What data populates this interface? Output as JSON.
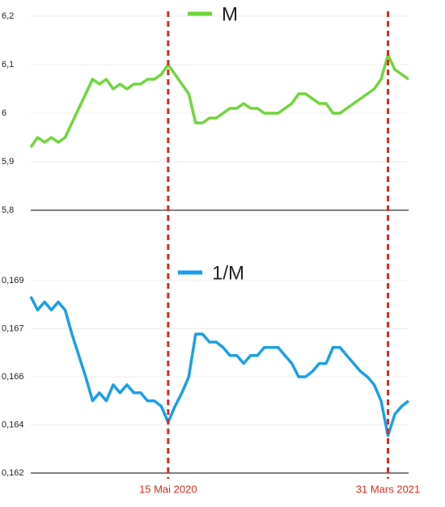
{
  "chart_data": {
    "type": "line",
    "categories": [
      null,
      null,
      null,
      null,
      null,
      null,
      null,
      null,
      null,
      null,
      null,
      null,
      null,
      null,
      null,
      null,
      null,
      null,
      null,
      null,
      "15 Mai 2020",
      null,
      null,
      null,
      null,
      null,
      null,
      null,
      null,
      null,
      null,
      null,
      null,
      null,
      null,
      null,
      null,
      null,
      null,
      null,
      null,
      null,
      null,
      null,
      null,
      null,
      null,
      null,
      null,
      null,
      null,
      null,
      "31 Mars 2021",
      null,
      null,
      null
    ],
    "reference_line_color": "#e0281e",
    "grid": true,
    "panels": [
      {
        "series": [
          {
            "name": "M",
            "color": "#6fd63a",
            "values": [
              5.93,
              5.95,
              5.94,
              5.95,
              5.94,
              5.95,
              5.98,
              6.01,
              6.04,
              6.07,
              6.06,
              6.07,
              6.05,
              6.06,
              6.05,
              6.06,
              6.06,
              6.07,
              6.07,
              6.08,
              6.1,
              6.08,
              6.06,
              6.04,
              5.98,
              5.98,
              5.99,
              5.99,
              6.0,
              6.01,
              6.01,
              6.02,
              6.01,
              6.01,
              6.0,
              6.0,
              6.0,
              6.01,
              6.02,
              6.04,
              6.04,
              6.03,
              6.02,
              6.02,
              6.0,
              6.0,
              6.01,
              6.02,
              6.03,
              6.04,
              6.05,
              6.07,
              6.12,
              6.09,
              6.08,
              6.07
            ]
          }
        ],
        "ylim": [
          5.8,
          6.2
        ],
        "yticks": [
          {
            "value": 5.8,
            "label": "5,8"
          },
          {
            "value": 5.9,
            "label": "5,9"
          },
          6,
          {
            "value": 6.1,
            "label": "6,1"
          },
          {
            "value": 6.2,
            "label": "6,2"
          }
        ]
      },
      {
        "series": [
          {
            "name": "1/M",
            "color": "#1a9fe8",
            "values": [
              0.1686,
              0.1681,
              0.1684,
              0.1681,
              0.1684,
              0.1681,
              0.1672,
              0.1664,
              0.1656,
              0.1647,
              0.165,
              0.1647,
              0.1653,
              0.165,
              0.1653,
              0.165,
              0.165,
              0.1647,
              0.1647,
              0.1645,
              0.1639,
              0.1645,
              0.165,
              0.1656,
              0.1672,
              0.1672,
              0.1669,
              0.1669,
              0.1667,
              0.1664,
              0.1664,
              0.1661,
              0.1664,
              0.1664,
              0.1667,
              0.1667,
              0.1667,
              0.1664,
              0.1661,
              0.1656,
              0.1656,
              0.1658,
              0.1661,
              0.1661,
              0.1667,
              0.1667,
              0.1664,
              0.1661,
              0.1658,
              0.1656,
              0.1653,
              0.1647,
              0.1634,
              0.1642,
              0.1645,
              0.1647
            ]
          }
        ],
        "ylim": [
          0.162,
          0.1692
        ],
        "yticks": [
          {
            "value": 0.162,
            "label": "0,162"
          },
          {
            "value": 0.1638,
            "label": "0,164"
          },
          {
            "value": 0.1656,
            "label": "0,166"
          },
          {
            "value": 0.1674,
            "label": "0,167"
          },
          {
            "value": 0.1692,
            "label": "0,169"
          }
        ]
      }
    ]
  }
}
